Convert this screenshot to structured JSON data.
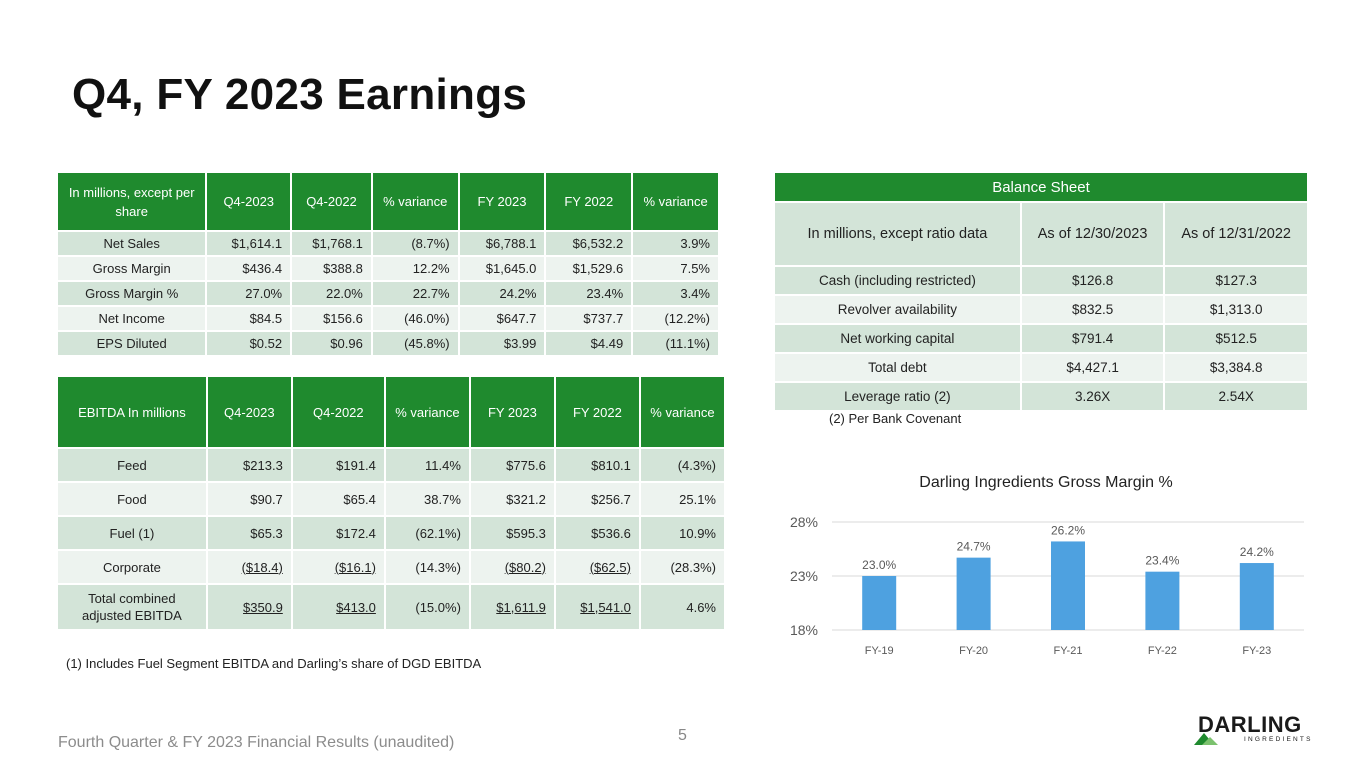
{
  "page": {
    "title": "Q4, FY 2023 Earnings",
    "footer": "Fourth Quarter & FY 2023 Financial Results (unaudited)",
    "page_number": "5",
    "logo_text": "DARLING",
    "logo_subtext": "INGREDIENTS"
  },
  "earnings_table": {
    "headers": [
      "In millions, except per share",
      "Q4-2023",
      "Q4-2022",
      "% variance",
      "FY 2023",
      "FY 2022",
      "% variance"
    ],
    "rows": [
      [
        "Net Sales",
        "$1,614.1",
        "$1,768.1",
        "(8.7%)",
        "$6,788.1",
        "$6,532.2",
        "3.9%"
      ],
      [
        "Gross Margin",
        "$436.4",
        "$388.8",
        "12.2%",
        "$1,645.0",
        "$1,529.6",
        "7.5%"
      ],
      [
        "Gross Margin %",
        "27.0%",
        "22.0%",
        "22.7%",
        "24.2%",
        "23.4%",
        "3.4%"
      ],
      [
        "Net Income",
        "$84.5",
        "$156.6",
        "(46.0%)",
        "$647.7",
        "$737.7",
        "(12.2%)"
      ],
      [
        "EPS Diluted",
        "$0.52",
        "$0.96",
        "(45.8%)",
        "$3.99",
        "$4.49",
        "(11.1%)"
      ]
    ]
  },
  "ebitda_table": {
    "headers": [
      "EBITDA In millions",
      "Q4-2023",
      "Q4-2022",
      "% variance",
      "FY 2023",
      "FY 2022",
      "% variance"
    ],
    "rows": [
      [
        "Feed",
        "$213.3",
        "$191.4",
        "11.4%",
        "$775.6",
        "$810.1",
        "(4.3%)"
      ],
      [
        "Food",
        "$90.7",
        "$65.4",
        "38.7%",
        "$321.2",
        "$256.7",
        "25.1%"
      ],
      [
        "Fuel (1)",
        "$65.3",
        "$172.4",
        "(62.1%)",
        "$595.3",
        "$536.6",
        "10.9%"
      ],
      [
        "Corporate",
        "($18.4)",
        "($16.1)",
        "(14.3%)",
        "($80.2)",
        "($62.5)",
        "(28.3%)"
      ],
      [
        "Total combined adjusted EBITDA",
        "$350.9",
        "$413.0",
        "(15.0%)",
        "$1,611.9",
        "$1,541.0",
        "4.6%"
      ]
    ],
    "footnote": "(1) Includes Fuel Segment EBITDA and Darling’s share of DGD EBITDA"
  },
  "balance_sheet": {
    "title": "Balance Sheet",
    "headers": [
      "In millions, except ratio data",
      "As of 12/30/2023",
      "As of 12/31/2022"
    ],
    "rows": [
      [
        "Cash (including restricted)",
        "$126.8",
        "$127.3"
      ],
      [
        "Revolver availability",
        "$832.5",
        "$1,313.0"
      ],
      [
        "Net working capital",
        "$791.4",
        "$512.5"
      ],
      [
        "Total debt",
        "$4,427.1",
        "$3,384.8"
      ],
      [
        "Leverage ratio (2)",
        "3.26X",
        "2.54X"
      ]
    ],
    "footnote": "(2) Per Bank Covenant"
  },
  "chart_data": {
    "type": "bar",
    "title": "Darling Ingredients Gross Margin %",
    "categories": [
      "FY-19",
      "FY-20",
      "FY-21",
      "FY-22",
      "FY-23"
    ],
    "values": [
      23.0,
      24.7,
      26.2,
      23.4,
      24.2
    ],
    "data_labels": [
      "23.0%",
      "24.7%",
      "26.2%",
      "23.4%",
      "24.2%"
    ],
    "yticks": [
      18,
      23,
      28
    ],
    "ytick_labels": [
      "18%",
      "23%",
      "28%"
    ],
    "ylim": [
      18,
      28
    ],
    "bar_color": "#4ea1e0",
    "grid": true,
    "xlabel": "",
    "ylabel": ""
  }
}
